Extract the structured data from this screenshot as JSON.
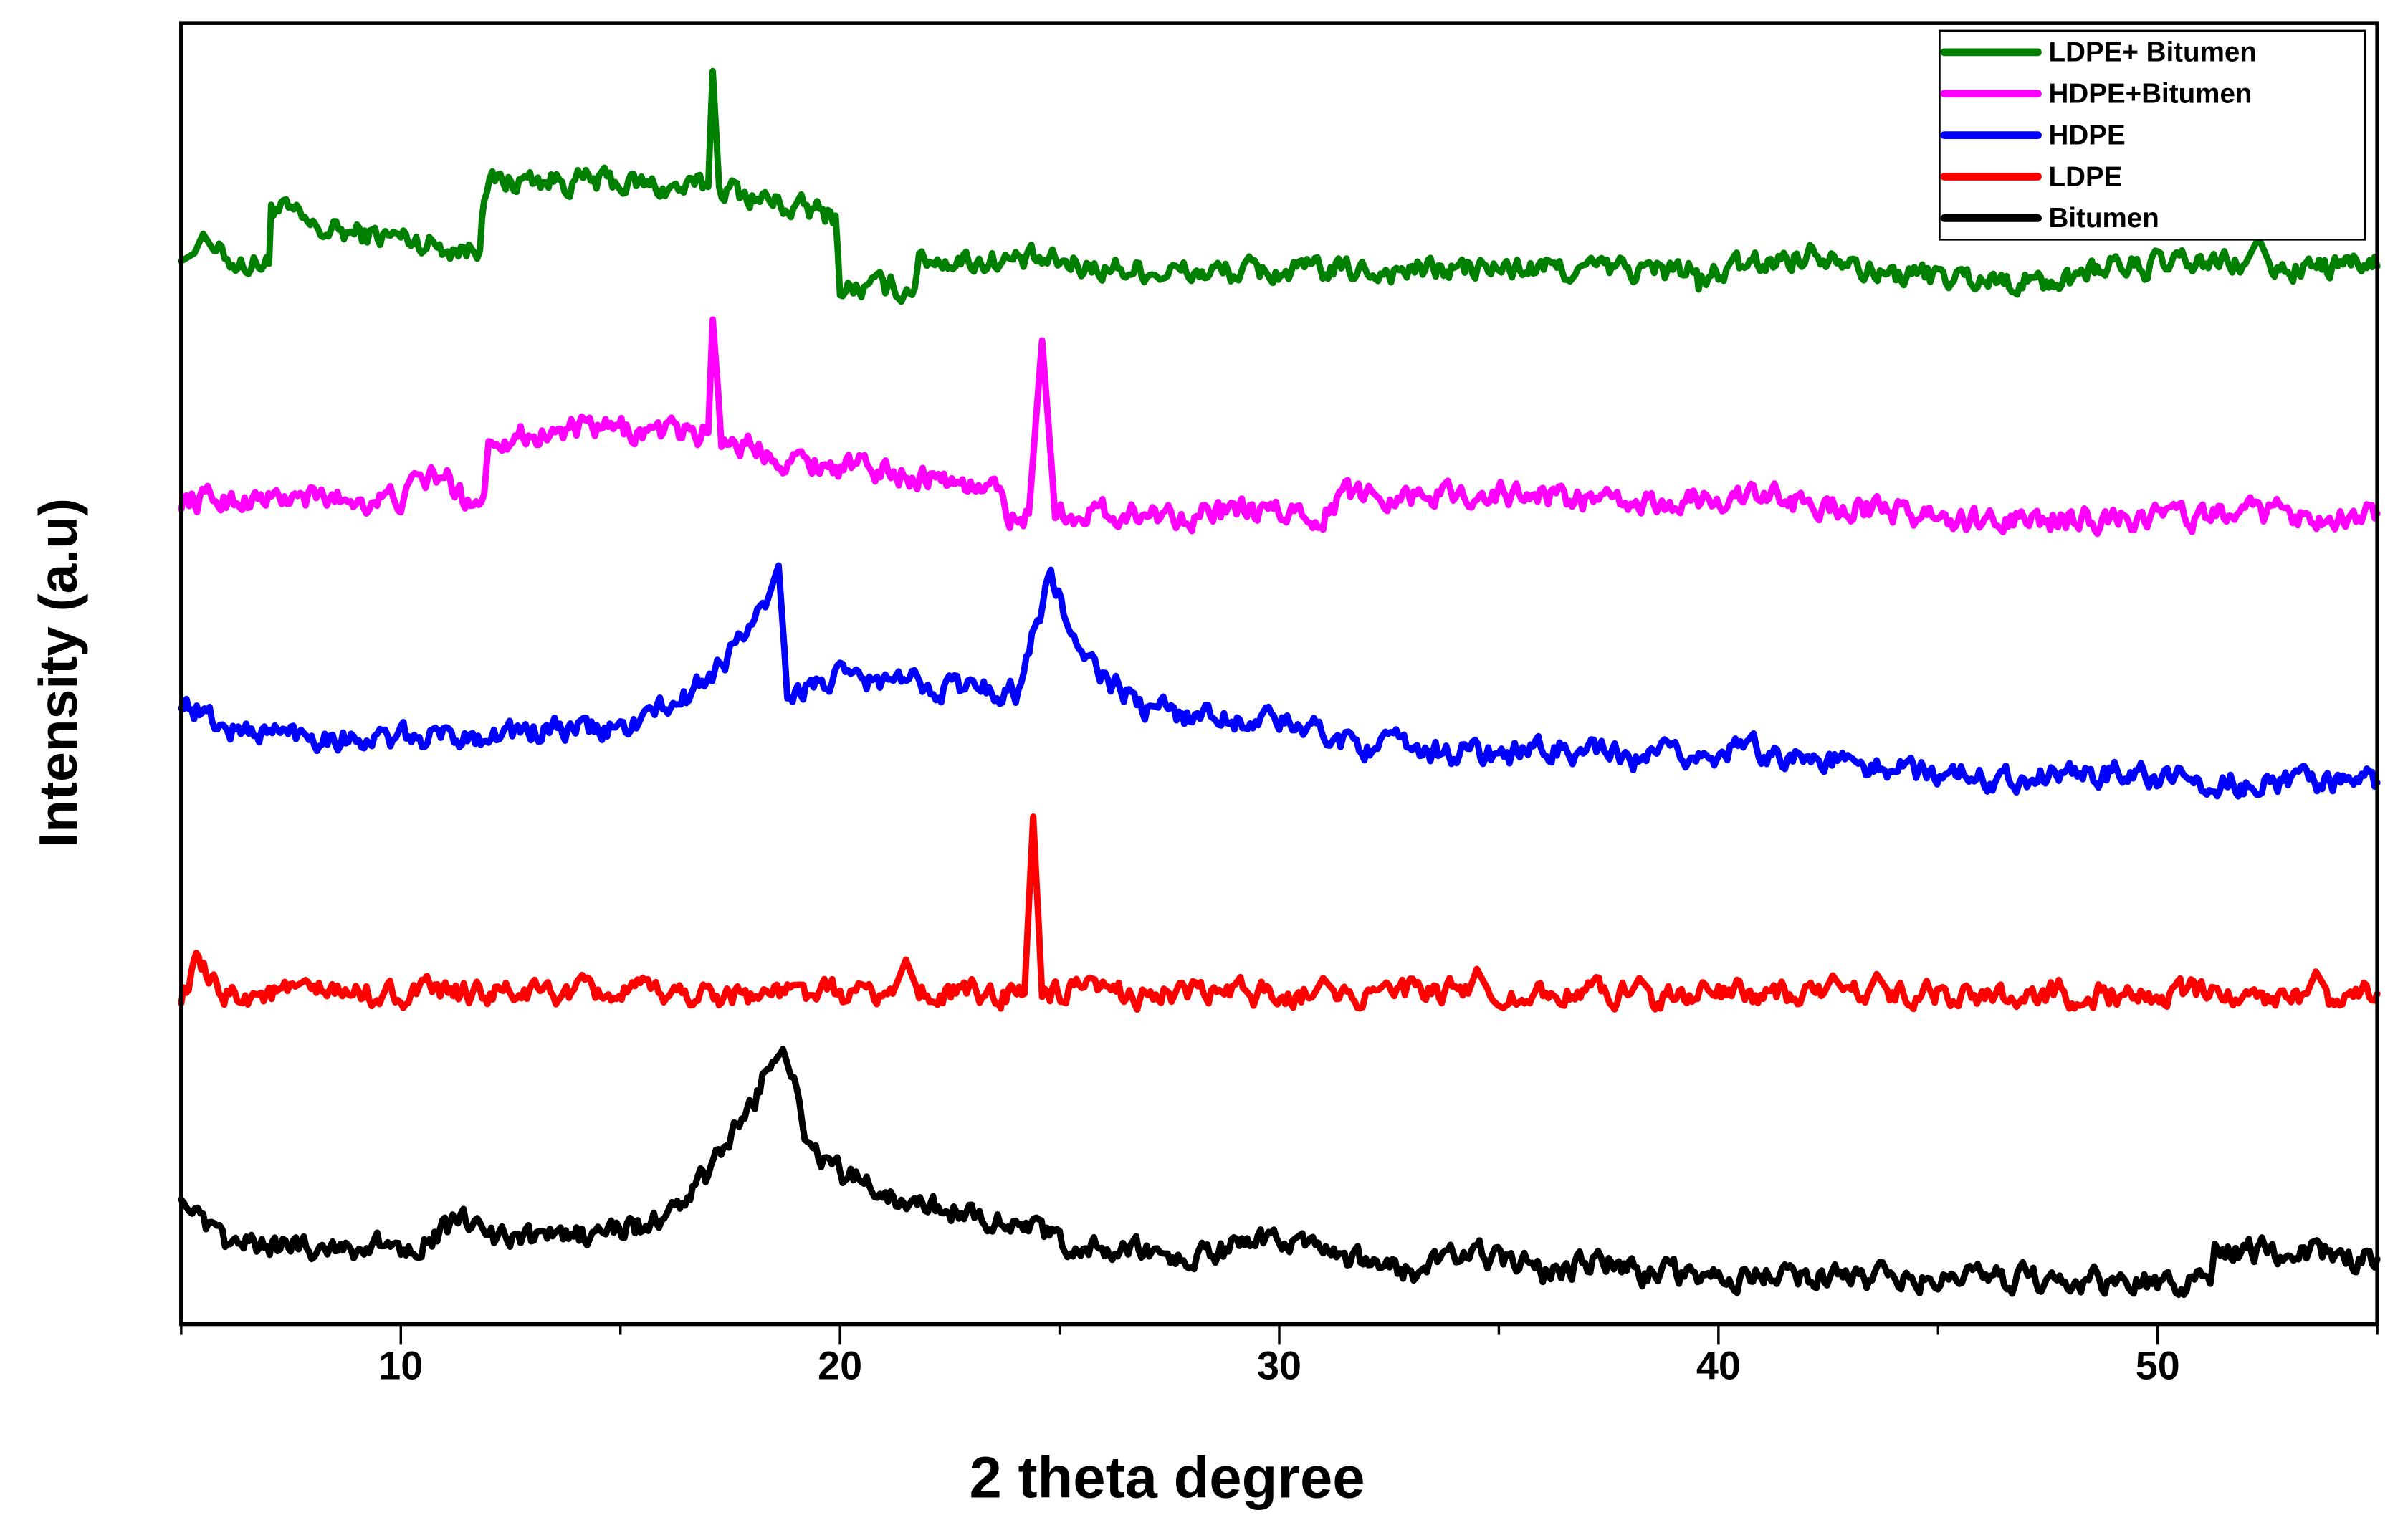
{
  "chart_data": {
    "type": "line",
    "title": "",
    "xlabel": "2 theta degree",
    "ylabel": "Intensity (a.u)",
    "xlim": [
      5,
      55
    ],
    "ylim": [
      0,
      100
    ],
    "x_ticks": [
      10,
      20,
      30,
      40,
      50
    ],
    "x_minor_ticks": [
      5,
      15,
      25,
      35,
      45,
      55
    ],
    "y_ticks": [],
    "grid": false,
    "legend_position": "upper right",
    "note": "Stacked XRD patterns with vertical offsets; y values are relative positions in arbitrary units (0 = bottom axis, 100 = top of frame).",
    "series": [
      {
        "name": "LDPE+ Bitumen",
        "color": "#008000",
        "points": [
          [
            5,
            81.7
          ],
          [
            5.3,
            82.3
          ],
          [
            5.5,
            83.8
          ],
          [
            5.8,
            82.2
          ],
          [
            6.3,
            81.6
          ],
          [
            7.0,
            81.5
          ],
          [
            7.05,
            86.1
          ],
          [
            7.5,
            85.2
          ],
          [
            8,
            84.1
          ],
          [
            9,
            83.8
          ],
          [
            10,
            83.5
          ],
          [
            11,
            82.9
          ],
          [
            11.8,
            82.5
          ],
          [
            11.9,
            87.6
          ],
          [
            13,
            88.0
          ],
          [
            15,
            87.7
          ],
          [
            16.5,
            87.2
          ],
          [
            17.0,
            87.4
          ],
          [
            17.1,
            96.3
          ],
          [
            17.25,
            87.4
          ],
          [
            18,
            86.7
          ],
          [
            19,
            85.7
          ],
          [
            19.9,
            85.2
          ],
          [
            20.0,
            79.6
          ],
          [
            21.7,
            79.6
          ],
          [
            21.8,
            81.9
          ],
          [
            24,
            81.7
          ],
          [
            28,
            80.8
          ],
          [
            35,
            81.1
          ],
          [
            39.5,
            81.0
          ],
          [
            39.55,
            79.9
          ],
          [
            40,
            80.8
          ],
          [
            42.2,
            82.4
          ],
          [
            43,
            82.3
          ],
          [
            43.5,
            80.8
          ],
          [
            48,
            80.0
          ],
          [
            48.2,
            81.2
          ],
          [
            52,
            81.5
          ],
          [
            52.3,
            83.5
          ],
          [
            52.6,
            81.1
          ],
          [
            55,
            81.3
          ]
        ]
      },
      {
        "name": "HDPE+Bitumen",
        "color": "#FF00FF",
        "points": [
          [
            5,
            63.4
          ],
          [
            10,
            63.4
          ],
          [
            10.5,
            64.9
          ],
          [
            11,
            65.2
          ],
          [
            11.4,
            63.4
          ],
          [
            11.9,
            63.8
          ],
          [
            12.0,
            68.1
          ],
          [
            14,
            68.7
          ],
          [
            17,
            68.5
          ],
          [
            17.1,
            77.2
          ],
          [
            17.3,
            68.2
          ],
          [
            19,
            66.4
          ],
          [
            22,
            65.2
          ],
          [
            23.7,
            63.8
          ],
          [
            23.8,
            61.9
          ],
          [
            24.3,
            62.3
          ],
          [
            24.6,
            75.6
          ],
          [
            24.9,
            62.3
          ],
          [
            31,
            62.3
          ],
          [
            31.5,
            63.8
          ],
          [
            36,
            63.8
          ],
          [
            38,
            62.8
          ],
          [
            40.5,
            63.7
          ],
          [
            46,
            61.6
          ],
          [
            50,
            62.1
          ],
          [
            55,
            62.3
          ]
        ]
      },
      {
        "name": "HDPE",
        "color": "#0000FF",
        "points": [
          [
            5,
            48.1
          ],
          [
            6,
            45.7
          ],
          [
            10,
            44.9
          ],
          [
            12,
            45.4
          ],
          [
            15,
            45.7
          ],
          [
            16.5,
            48.1
          ],
          [
            17.5,
            51.6
          ],
          [
            18.3,
            55.1
          ],
          [
            18.6,
            58.3
          ],
          [
            18.8,
            48.6
          ],
          [
            20,
            49.6
          ],
          [
            22,
            49.2
          ],
          [
            24,
            48.6
          ],
          [
            24.8,
            57.6
          ],
          [
            25.5,
            51.0
          ],
          [
            27,
            47.2
          ],
          [
            30,
            46.3
          ],
          [
            32,
            44.5
          ],
          [
            35,
            43.7
          ],
          [
            36.5,
            44.3
          ],
          [
            38,
            43.3
          ],
          [
            40.8,
            44.2
          ],
          [
            43,
            43.0
          ],
          [
            46,
            42.1
          ],
          [
            49.5,
            42.4
          ],
          [
            51,
            41.6
          ],
          [
            55,
            41.6
          ]
        ]
      },
      {
        "name": "LDPE",
        "color": "#FF0000",
        "points": [
          [
            5,
            25.4
          ],
          [
            5.4,
            27.6
          ],
          [
            5.8,
            25.4
          ],
          [
            21.2,
            25.4
          ],
          [
            21.5,
            28.0
          ],
          [
            21.8,
            25.4
          ],
          [
            24.2,
            25.4
          ],
          [
            24.4,
            39.0
          ],
          [
            24.6,
            25.4
          ],
          [
            30.8,
            25.4
          ],
          [
            31.0,
            26.6
          ],
          [
            31.3,
            25.4
          ],
          [
            34.3,
            25.4
          ],
          [
            34.5,
            27.3
          ],
          [
            34.8,
            25.4
          ],
          [
            38.0,
            25.4
          ],
          [
            38.2,
            26.6
          ],
          [
            38.5,
            25.4
          ],
          [
            42.4,
            25.4
          ],
          [
            42.6,
            26.8
          ],
          [
            42.9,
            25.4
          ],
          [
            43.4,
            25.4
          ],
          [
            43.6,
            26.9
          ],
          [
            43.9,
            25.4
          ],
          [
            53.4,
            25.4
          ],
          [
            53.6,
            27.1
          ],
          [
            53.9,
            25.4
          ],
          [
            55,
            25.4
          ]
        ]
      },
      {
        "name": "Bitumen",
        "color": "#000000",
        "points": [
          [
            5,
            10.3
          ],
          [
            5.5,
            7.3
          ],
          [
            6,
            6.1
          ],
          [
            10,
            5.9
          ],
          [
            11.3,
            7.6
          ],
          [
            11.8,
            7.8
          ],
          [
            12,
            6.4
          ],
          [
            14,
            6.7
          ],
          [
            16,
            7.9
          ],
          [
            17,
            11.5
          ],
          [
            18,
            16.8
          ],
          [
            18.7,
            22.4
          ],
          [
            19.2,
            14.5
          ],
          [
            20,
            11.5
          ],
          [
            22,
            9.1
          ],
          [
            23,
            8.5
          ],
          [
            24,
            7.9
          ],
          [
            25,
            6.1
          ],
          [
            28,
            5.0
          ],
          [
            30,
            6.7
          ],
          [
            31,
            5.0
          ],
          [
            33,
            4.0
          ],
          [
            34.5,
            5.5
          ],
          [
            36,
            4.0
          ],
          [
            37.5,
            5.0
          ],
          [
            38.5,
            3.8
          ],
          [
            45,
            3.5
          ],
          [
            51.2,
            3.1
          ],
          [
            51.3,
            5.9
          ],
          [
            55,
            5.0
          ]
        ]
      }
    ]
  },
  "axes": {
    "x_title": "2 theta degree",
    "y_title": "Intensity (a.u)",
    "x_tick_labels": [
      "10",
      "20",
      "30",
      "40",
      "50"
    ]
  },
  "legend": {
    "items": [
      {
        "label": "LDPE+ Bitumen",
        "color": "#008000"
      },
      {
        "label": "HDPE+Bitumen",
        "color": "#FF00FF"
      },
      {
        "label": "HDPE",
        "color": "#0000FF"
      },
      {
        "label": "LDPE",
        "color": "#FF0000"
      },
      {
        "label": "Bitumen",
        "color": "#000000"
      }
    ]
  }
}
